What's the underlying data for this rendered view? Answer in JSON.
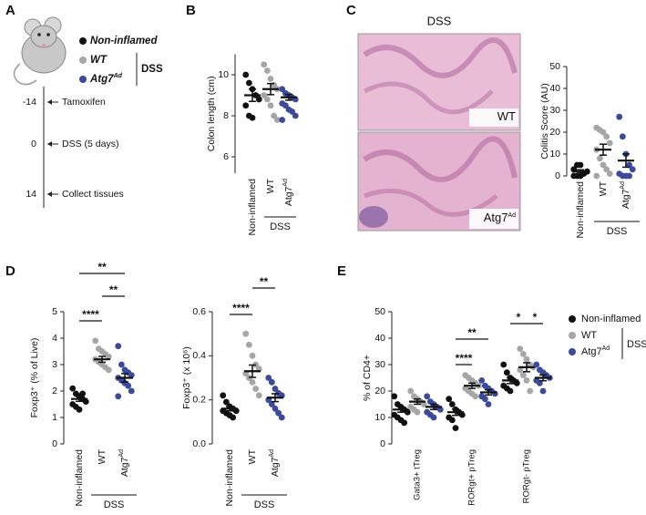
{
  "panel_labels": [
    "A",
    "B",
    "C",
    "D",
    "E"
  ],
  "timeline": {
    "legend": [
      {
        "name": "Non-inflamed",
        "color": "#111111"
      },
      {
        "name": "WT",
        "color": "#a6a6a6"
      },
      {
        "name": "Atg7",
        "sup": "Ad",
        "color": "#3b4a9c"
      }
    ],
    "group_label": "DSS",
    "events": [
      {
        "day": -14,
        "label": "Tamoxifen"
      },
      {
        "day": 0,
        "label": "DSS (5 days)"
      },
      {
        "day": 14,
        "label": "Collect tissues"
      }
    ]
  },
  "histology": {
    "title": "DSS",
    "panels": [
      {
        "label": "WT"
      },
      {
        "label": "Atg7",
        "sup": "Ad"
      }
    ]
  },
  "chart_data": [
    {
      "type": "dot",
      "ylabel": "Colon length (cm)",
      "categories": [
        "Non-inflamed",
        "WT",
        "Atg7"
      ],
      "category_superscripts": [
        null,
        null,
        "Ad"
      ],
      "colors": [
        "#111111",
        "#a6a6a6",
        "#3b4a9c"
      ],
      "points": [
        [
          10,
          9.6,
          9.3,
          9.0,
          8.8,
          8.5,
          8.0,
          7.9
        ],
        [
          10.5,
          10.2,
          9.8,
          9.5,
          9.3,
          9.0,
          8.8,
          8.5,
          8.0,
          7.8
        ],
        [
          9.3,
          9.1,
          9.0,
          8.9,
          8.8,
          8.6,
          8.5,
          8.3,
          8.2,
          8.0,
          7.8
        ]
      ],
      "means": [
        9.0,
        9.3,
        8.9
      ],
      "sems": [
        0.3,
        0.27,
        0.14
      ],
      "ylim": [
        5.2,
        11
      ],
      "yticks": [
        6,
        8,
        10
      ],
      "group_label": "DSS",
      "significance": []
    },
    {
      "type": "dot",
      "ylabel": "Colitis Score (AU)",
      "categories": [
        "Non-inflamed",
        "WT",
        "Atg7"
      ],
      "category_superscripts": [
        null,
        null,
        "Ad"
      ],
      "colors": [
        "#111111",
        "#a6a6a6",
        "#3b4a9c"
      ],
      "points": [
        [
          0,
          0,
          0,
          1,
          2,
          3,
          5,
          5
        ],
        [
          22,
          21,
          20,
          18,
          15,
          12,
          8,
          5,
          3,
          1,
          0
        ],
        [
          27,
          18,
          10,
          5,
          3,
          1,
          0,
          0,
          0
        ]
      ],
      "means": [
        2,
        12,
        7
      ],
      "sems": [
        0.8,
        2.5,
        3
      ],
      "ylim": [
        0,
        50
      ],
      "yticks": [
        0,
        10,
        20,
        30,
        40,
        50
      ],
      "group_label": "DSS",
      "significance": []
    },
    {
      "type": "dot",
      "ylabel": "Foxp3⁺ (% of Live)",
      "categories": [
        "Non-inflamed",
        "WT",
        "Atg7"
      ],
      "category_superscripts": [
        null,
        null,
        "Ad"
      ],
      "colors": [
        "#111111",
        "#a6a6a6",
        "#3b4a9c"
      ],
      "points": [
        [
          2.1,
          1.9,
          1.8,
          1.7,
          1.6,
          1.5,
          1.4,
          1.3,
          1.9
        ],
        [
          3.9,
          3.6,
          3.5,
          3.4,
          3.3,
          3.2,
          3.1,
          3.0,
          2.9,
          2.8
        ],
        [
          3.7,
          3.0,
          2.8,
          2.7,
          2.6,
          2.5,
          2.4,
          2.3,
          2.2,
          2.0,
          1.8
        ]
      ],
      "means": [
        1.7,
        3.2,
        2.5
      ],
      "sems": [
        0.09,
        0.11,
        0.16
      ],
      "ylim": [
        0,
        5
      ],
      "yticks": [
        0,
        1,
        2,
        3,
        4,
        5
      ],
      "group_label": "DSS",
      "significance": [
        {
          "pair": [
            "Non-inflamed",
            "WT"
          ],
          "label": "****"
        },
        {
          "pair": [
            "WT",
            "Atg7"
          ],
          "label": "**"
        },
        {
          "pair": [
            "Non-inflamed",
            "Atg7"
          ],
          "label": "**"
        }
      ]
    },
    {
      "type": "dot",
      "ylabel": "Foxp3⁺ (x 10⁶)",
      "categories": [
        "Non-inflamed",
        "WT",
        "Atg7"
      ],
      "category_superscripts": [
        null,
        null,
        "Ad"
      ],
      "colors": [
        "#111111",
        "#a6a6a6",
        "#3b4a9c"
      ],
      "points": [
        [
          0.22,
          0.19,
          0.17,
          0.16,
          0.15,
          0.15,
          0.14,
          0.13,
          0.12
        ],
        [
          0.5,
          0.45,
          0.4,
          0.36,
          0.34,
          0.32,
          0.3,
          0.28,
          0.25,
          0.22
        ],
        [
          0.3,
          0.28,
          0.25,
          0.23,
          0.22,
          0.2,
          0.18,
          0.16,
          0.14,
          0.12
        ]
      ],
      "means": [
        0.16,
        0.33,
        0.21
      ],
      "sems": [
        0.01,
        0.028,
        0.018
      ],
      "ylim": [
        0,
        0.6
      ],
      "yticks": [
        {
          "value": 0,
          "label": "0.0"
        },
        0.2,
        0.4,
        0.6
      ],
      "group_label": "DSS",
      "significance": [
        {
          "pair": [
            "Non-inflamed",
            "WT"
          ],
          "label": "****"
        },
        {
          "pair": [
            "WT",
            "Atg7"
          ],
          "label": "**"
        }
      ]
    },
    {
      "type": "grouped_dot",
      "ylabel": "% of CD4+",
      "categories": [
        "Gata3+ tTreg",
        "RORgt+ pTreg",
        "RORgt- pTreg"
      ],
      "series": [
        {
          "name": "Non-inflamed",
          "color": "#111111",
          "points": [
            [
              18,
              15,
              14,
              13,
              12,
              11,
              10,
              9,
              8
            ],
            [
              17,
              15,
              13,
              12,
              11,
              10,
              9,
              6
            ],
            [
              30,
              27,
              25,
              24,
              23,
              22,
              21,
              20
            ]
          ],
          "means": [
            13,
            12,
            24
          ],
          "sems": [
            1,
            1.2,
            1.2
          ]
        },
        {
          "name": "WT",
          "color": "#a6a6a6",
          "points": [
            [
              20,
              18,
              17,
              16,
              15,
              14,
              13,
              12
            ],
            [
              26,
              25,
              24,
              23,
              22,
              21,
              20,
              19,
              18
            ],
            [
              36,
              34,
              32,
              30,
              29,
              28,
              26,
              24,
              20
            ]
          ],
          "means": [
            16,
            22,
            29
          ],
          "sems": [
            1,
            1,
            1.7
          ]
        },
        {
          "name": "Atg7",
          "sup": "Ad",
          "color": "#3b4a9c",
          "points": [
            [
              18,
              16,
              15,
              14,
              13,
              12,
              11,
              10
            ],
            [
              24,
              22,
              21,
              20,
              19,
              18,
              17,
              15
            ],
            [
              30,
              28,
              27,
              26,
              25,
              24,
              23,
              20
            ]
          ],
          "means": [
            14,
            19.5,
            25
          ],
          "sems": [
            1,
            1,
            1.1
          ]
        }
      ],
      "ylim": [
        0,
        50
      ],
      "yticks": [
        0,
        10,
        20,
        30,
        40,
        50
      ],
      "legend_group_label": "DSS",
      "significance": [
        {
          "category": "RORgt+ pTreg",
          "pair": [
            "Non-inflamed",
            "WT"
          ],
          "label": "****"
        },
        {
          "category": "RORgt+ pTreg",
          "pair": [
            "Non-inflamed",
            "Atg7"
          ],
          "label": "**"
        },
        {
          "category": "RORgt- pTreg",
          "pair": [
            "Non-inflamed",
            "WT"
          ],
          "label": "*"
        },
        {
          "category": "RORgt- pTreg",
          "pair": [
            "WT",
            "Atg7"
          ],
          "label": "*"
        }
      ]
    }
  ]
}
